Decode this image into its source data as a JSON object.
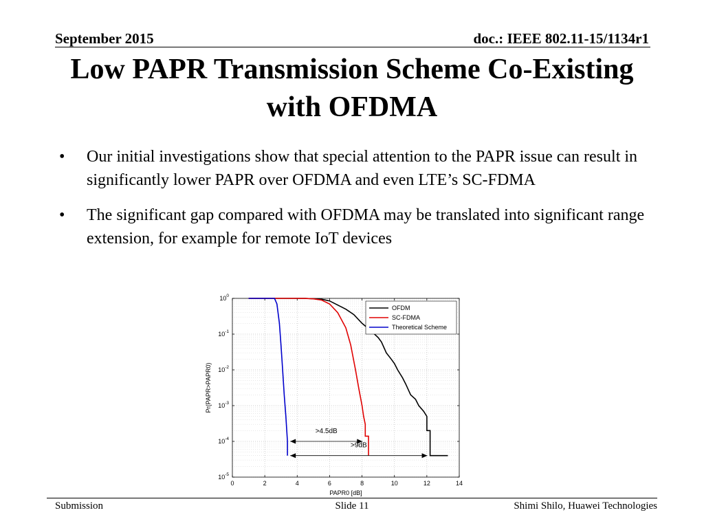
{
  "header": {
    "date": "September 2015",
    "doc": "doc.: IEEE 802.11-15/1134r1"
  },
  "title": "Low PAPR Transmission Scheme Co-Existing with OFDMA",
  "bullets": [
    "Our initial investigations show that special attention to the PAPR issue can result in significantly lower PAPR over OFDMA and even LTE’s SC-FDMA",
    "The significant gap compared with OFDMA may be translated into significant range extension, for example for remote IoT devices"
  ],
  "footer": {
    "left": "Submission",
    "center": "Slide 11",
    "right": "Shimi Shilo, Huawei Technologies"
  },
  "chart_data": {
    "type": "line",
    "ylabel": "Pr(PAPR>PAPR0)",
    "xlabel": "PAPR0 [dB]",
    "xlim": [
      0,
      14
    ],
    "ylim": [
      1e-05,
      1
    ],
    "yscale": "log",
    "xticks": [
      0,
      2,
      4,
      6,
      8,
      10,
      12,
      14
    ],
    "yticks": [
      1,
      0.1,
      0.01,
      0.001,
      0.0001,
      1e-05
    ],
    "grid": true,
    "legend": "top-right",
    "series": [
      {
        "name": "OFDM",
        "color": "#000000",
        "points": [
          [
            1.0,
            1
          ],
          [
            3.5,
            1
          ],
          [
            4.5,
            0.998
          ],
          [
            5.5,
            0.95
          ],
          [
            6.0,
            0.85
          ],
          [
            6.5,
            0.65
          ],
          [
            7.0,
            0.5
          ],
          [
            7.5,
            0.35
          ],
          [
            8.0,
            0.2
          ],
          [
            8.5,
            0.13
          ],
          [
            9.0,
            0.08
          ],
          [
            9.2,
            0.06
          ],
          [
            9.5,
            0.03
          ],
          [
            9.8,
            0.02
          ],
          [
            10.0,
            0.015
          ],
          [
            10.2,
            0.01
          ],
          [
            10.5,
            0.006
          ],
          [
            10.7,
            0.004
          ],
          [
            11.0,
            0.002
          ],
          [
            11.3,
            0.0015
          ],
          [
            11.5,
            0.001
          ],
          [
            11.8,
            0.0007
          ],
          [
            12.0,
            0.0005
          ],
          [
            12.0,
            0.0002
          ],
          [
            12.2,
            0.0002
          ],
          [
            12.2,
            4e-05
          ],
          [
            13.3,
            4e-05
          ]
        ]
      },
      {
        "name": "SC-FDMA",
        "color": "#e00000",
        "points": [
          [
            1.0,
            1
          ],
          [
            3.5,
            1
          ],
          [
            4.5,
            0.995
          ],
          [
            5.0,
            0.97
          ],
          [
            5.5,
            0.9
          ],
          [
            6.0,
            0.7
          ],
          [
            6.5,
            0.4
          ],
          [
            7.0,
            0.15
          ],
          [
            7.3,
            0.05
          ],
          [
            7.6,
            0.01
          ],
          [
            7.8,
            0.003
          ],
          [
            8.0,
            0.001
          ],
          [
            8.1,
            0.0005
          ],
          [
            8.2,
            0.0003
          ],
          [
            8.2,
            0.00014
          ],
          [
            8.4,
            0.00014
          ],
          [
            8.4,
            4e-05
          ]
        ]
      },
      {
        "name": "Theoretical Scheme",
        "color": "#0000cc",
        "points": [
          [
            1.0,
            1
          ],
          [
            2.6,
            1
          ],
          [
            2.75,
            0.7
          ],
          [
            2.9,
            0.2
          ],
          [
            3.0,
            0.05
          ],
          [
            3.1,
            0.01
          ],
          [
            3.2,
            0.002
          ],
          [
            3.3,
            0.0005
          ],
          [
            3.4,
            0.0001
          ],
          [
            3.4,
            4e-05
          ]
        ]
      }
    ],
    "annotations": [
      {
        "text": ">4.5dB",
        "y": 0.0001,
        "x_from": 3.4,
        "x_to": 8.2
      },
      {
        "text": ">9dB",
        "y": 4e-05,
        "x_from": 3.4,
        "x_to": 12.2
      }
    ]
  }
}
